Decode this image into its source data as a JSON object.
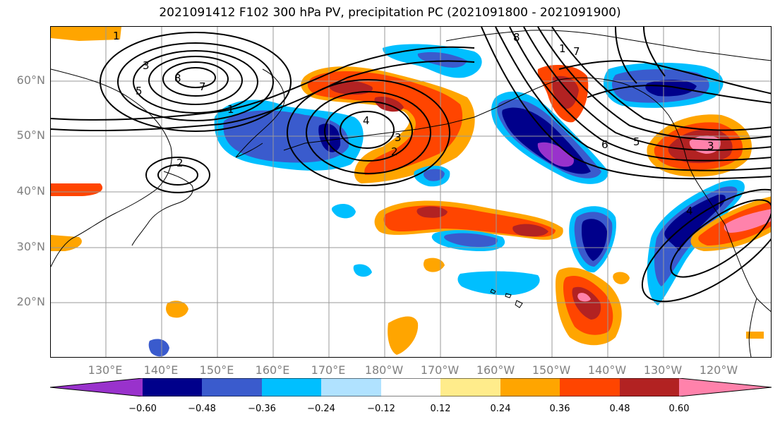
{
  "title": "2021091412 F102 300 hPa PV, precipitation PC (2021091800 - 2021091900)",
  "lat_labels": [
    "60°N",
    "50°N",
    "40°N",
    "30°N",
    "20°N"
  ],
  "lon_labels": [
    "130°E",
    "140°E",
    "150°E",
    "160°E",
    "170°E",
    "180°W",
    "170°W",
    "160°W",
    "150°W",
    "140°W",
    "130°W",
    "120°W"
  ],
  "colorbar": {
    "ticks": [
      "−0.60",
      "−0.48",
      "−0.36",
      "−0.24",
      "−0.12",
      "0.12",
      "0.24",
      "0.36",
      "0.48",
      "0.60"
    ],
    "colors": [
      "#9932cc",
      "#00008b",
      "#3a5bcd",
      "#00bfff",
      "#b0e2ff",
      "#ffffff",
      "#ffec8b",
      "#ffa500",
      "#ff4500",
      "#b22222",
      "#ff82ab"
    ]
  },
  "contour_labels": [
    "1",
    "3",
    "5",
    "7",
    "8",
    "2",
    "1",
    "4",
    "3",
    "2",
    "8",
    "6",
    "5",
    "1",
    "7",
    "4",
    "3"
  ],
  "colors": {
    "title": "#000000",
    "tick_text": "#808080",
    "grid": "#9a9a9a"
  }
}
